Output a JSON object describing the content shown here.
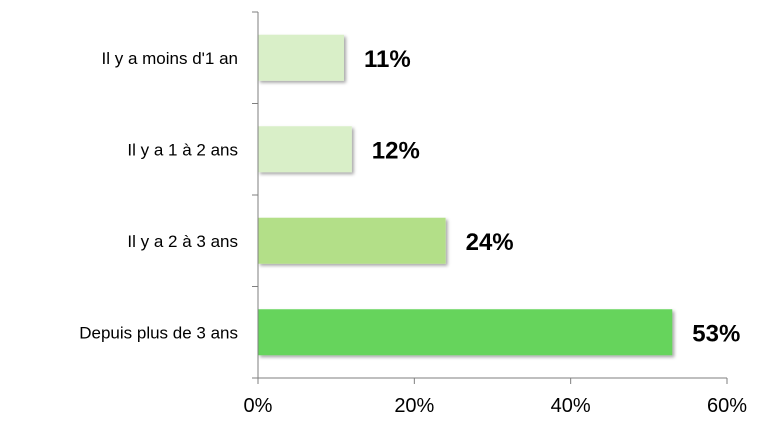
{
  "chart_data": {
    "type": "bar",
    "orientation": "horizontal",
    "categories": [
      "Il y a moins d'1 an",
      "Il y a 1 à 2 ans",
      "Il y a 2 à 3 ans",
      "Depuis plus de 3 ans"
    ],
    "values": [
      11,
      12,
      24,
      53
    ],
    "data_labels": [
      "11%",
      "12%",
      "24%",
      "53%"
    ],
    "bar_colors": [
      "#d9efc8",
      "#d9efc8",
      "#b3df88",
      "#66d45c"
    ],
    "xlim": [
      0,
      60
    ],
    "x_ticks": [
      0,
      20,
      40,
      60
    ],
    "x_tick_labels": [
      "0%",
      "20%",
      "40%",
      "60%"
    ],
    "grid": false,
    "legend": "none"
  }
}
